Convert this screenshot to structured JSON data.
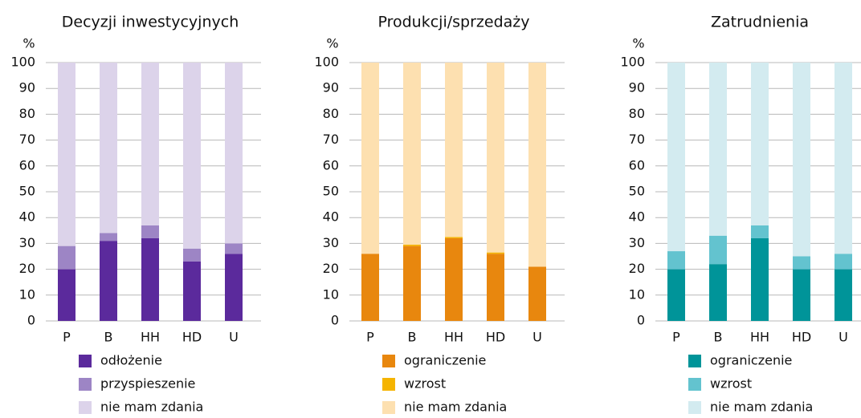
{
  "chart_data": [
    {
      "type": "bar",
      "stacked": true,
      "title": "Decyzji inwestycyjnych",
      "y_label": "%",
      "categories": [
        "P",
        "B",
        "HH",
        "HD",
        "U"
      ],
      "series": [
        {
          "name": "odłożenie",
          "color": "#5b2a9c",
          "values": [
            20,
            31,
            32,
            23,
            26
          ]
        },
        {
          "name": "przyspieszenie",
          "color": "#9d85c5",
          "values": [
            9,
            3,
            5,
            5,
            4
          ]
        },
        {
          "name": "nie mam zdania",
          "color": "#dcd3ea",
          "values": [
            71,
            66,
            63,
            72,
            70
          ]
        }
      ],
      "ylim": [
        0,
        100
      ],
      "yticks": [
        0,
        10,
        20,
        30,
        40,
        50,
        60,
        70,
        80,
        90,
        100
      ],
      "grid": true
    },
    {
      "type": "bar",
      "stacked": true,
      "title": "Produkcji/sprzedaży",
      "y_label": "%",
      "categories": [
        "P",
        "B",
        "HH",
        "HD",
        "U"
      ],
      "series": [
        {
          "name": "ograniczenie",
          "color": "#e8870e",
          "values": [
            26,
            29,
            32,
            26,
            21
          ]
        },
        {
          "name": "wzrost",
          "color": "#f5b400",
          "values": [
            0,
            0.5,
            0.5,
            0.5,
            0
          ]
        },
        {
          "name": "nie mam zdania",
          "color": "#fde0b0",
          "values": [
            74,
            70.5,
            67.5,
            73.5,
            79
          ]
        }
      ],
      "ylim": [
        0,
        100
      ],
      "yticks": [
        0,
        10,
        20,
        30,
        40,
        50,
        60,
        70,
        80,
        90,
        100
      ],
      "grid": true
    },
    {
      "type": "bar",
      "stacked": true,
      "title": "Zatrudnienia",
      "y_label": "%",
      "categories": [
        "P",
        "B",
        "HH",
        "HD",
        "U"
      ],
      "series": [
        {
          "name": "ograniczenie",
          "color": "#009499",
          "values": [
            20,
            22,
            32,
            20,
            20
          ]
        },
        {
          "name": "wzrost",
          "color": "#63c3cf",
          "values": [
            7,
            11,
            5,
            5,
            6
          ]
        },
        {
          "name": "nie mam zdania",
          "color": "#d3ebf0",
          "values": [
            73,
            67,
            63,
            75,
            74
          ]
        }
      ],
      "ylim": [
        0,
        100
      ],
      "yticks": [
        0,
        10,
        20,
        30,
        40,
        50,
        60,
        70,
        80,
        90,
        100
      ],
      "grid": true
    }
  ]
}
